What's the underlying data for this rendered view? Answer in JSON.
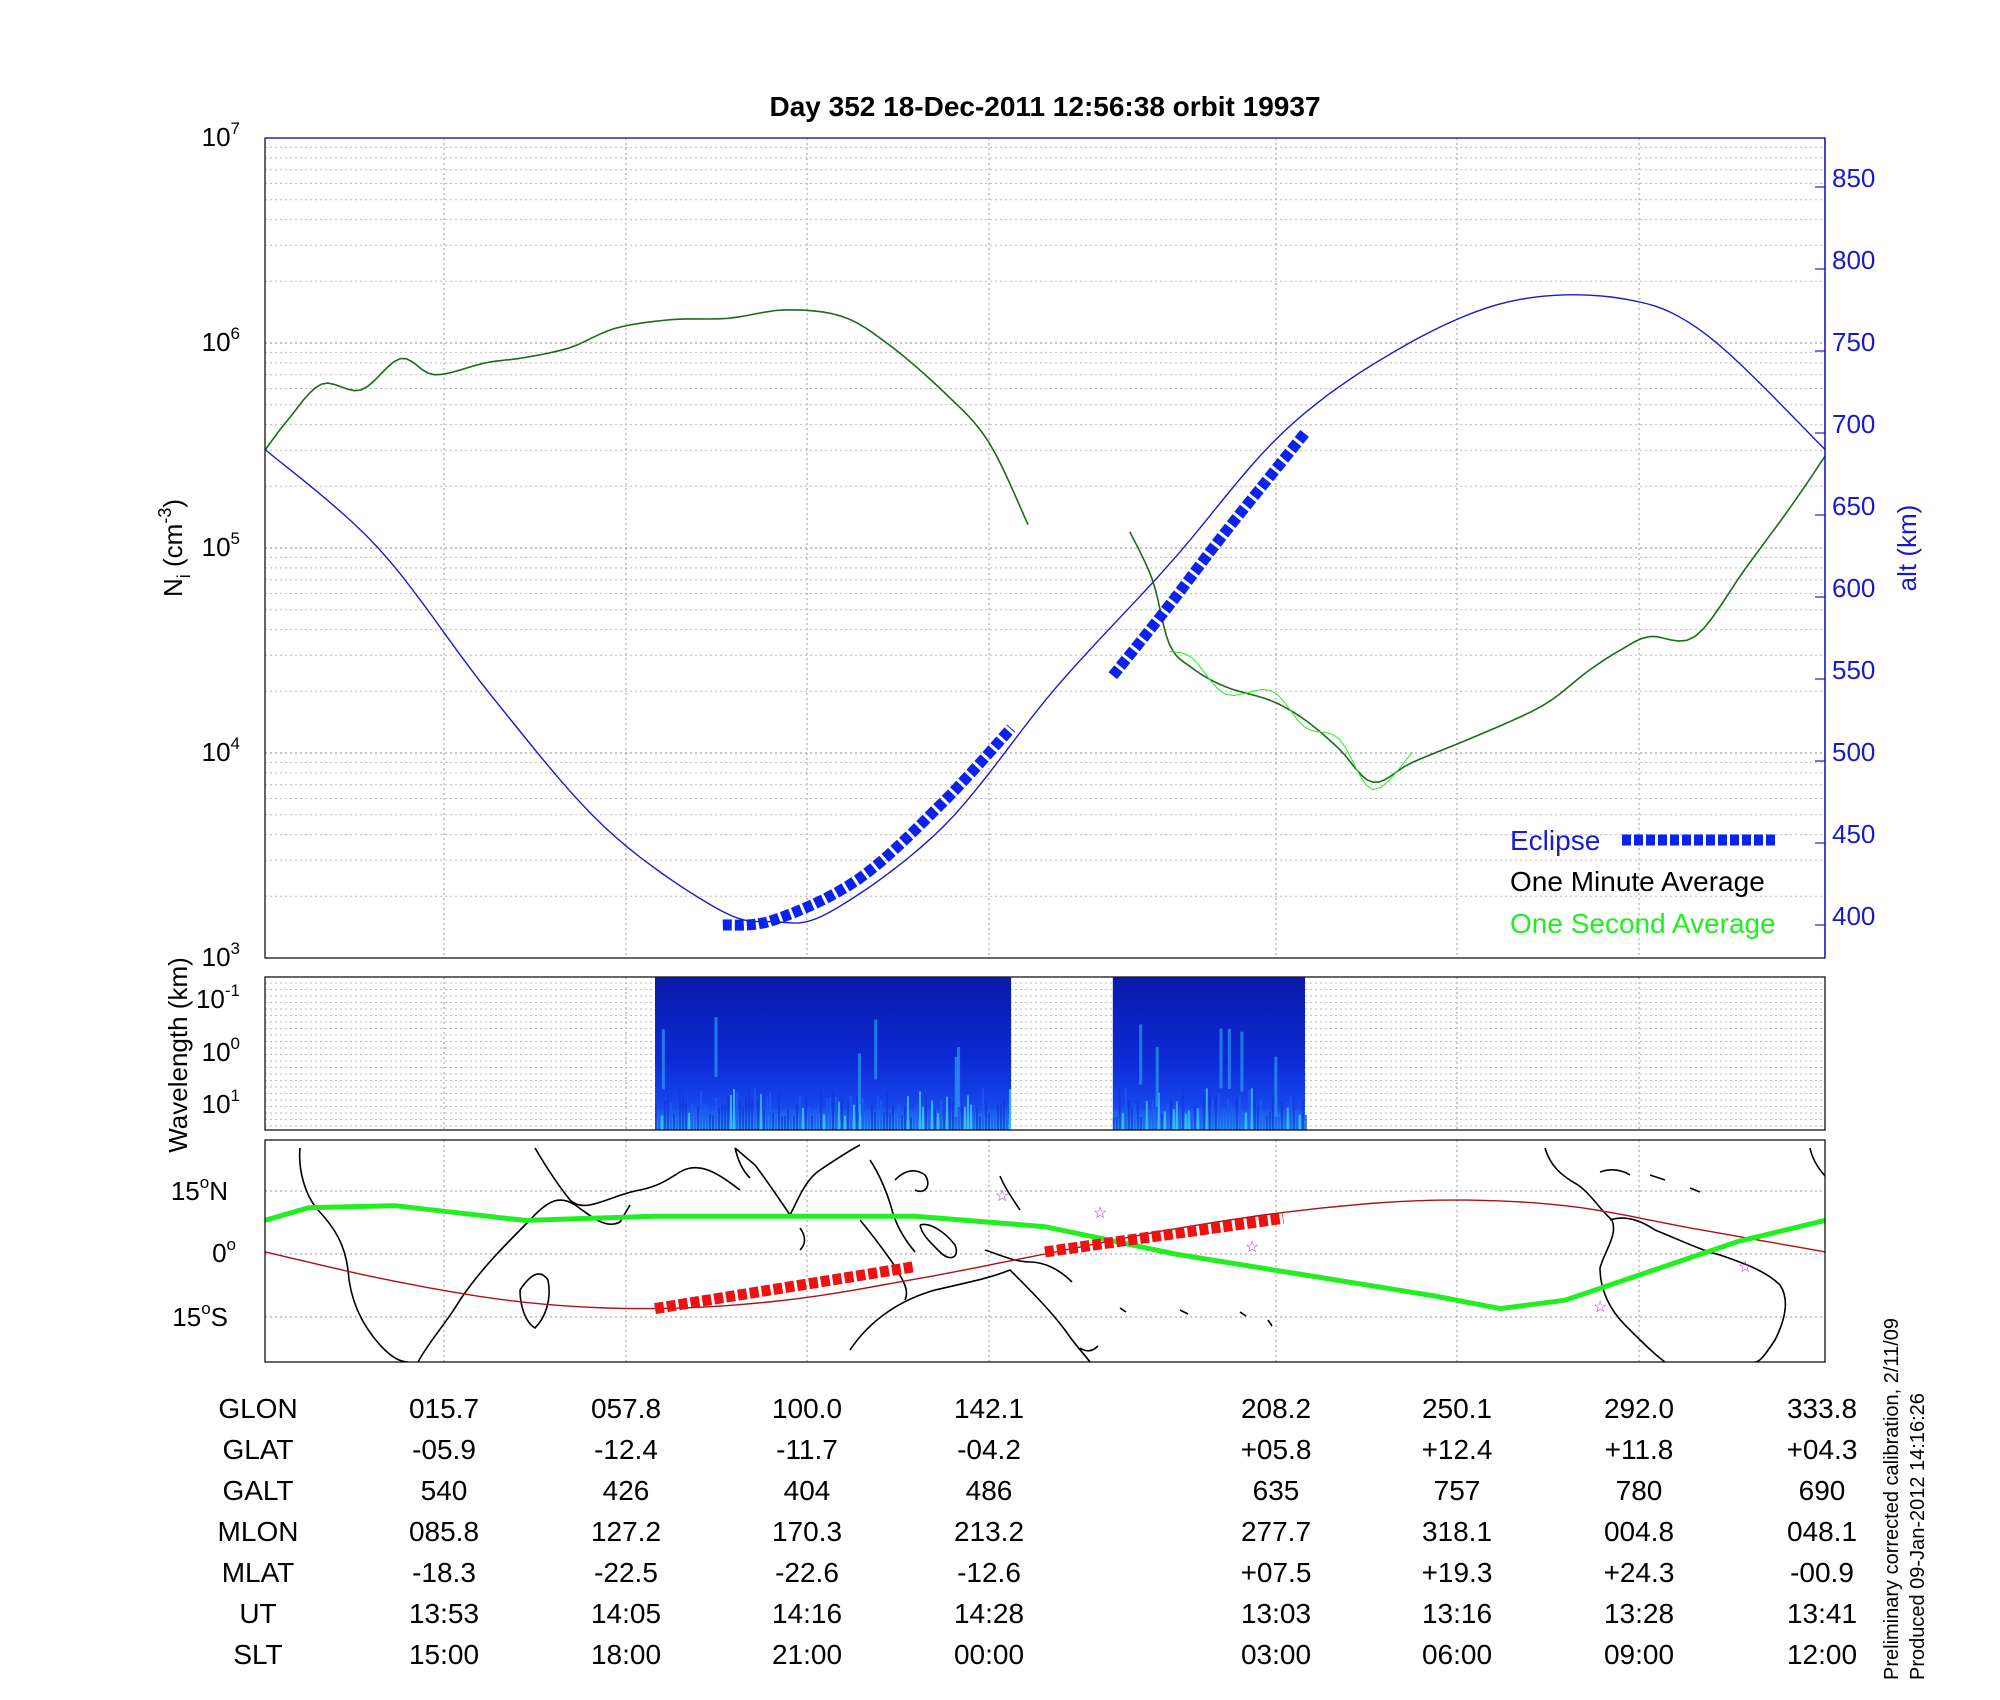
{
  "title": "Day 352  18-Dec-2011 12:56:38   orbit 19937",
  "colors": {
    "green_dark": "#1a6b1a",
    "green_bright": "#22ee22",
    "blue": "#1a1acc",
    "eclipse": "#0b22ee",
    "red": "#b01010",
    "eclipse_red": "#ee1111"
  },
  "panel_top": {
    "ylabel_left": "N",
    "ylabel_left_sub": "i",
    "ylabel_left_unit": "(cm",
    "ylabel_left_exp": "-3",
    "ylabel_left_close": ")",
    "ylabel_right": "alt (km)",
    "yticks_left": [
      {
        "base": "10",
        "exp": "7"
      },
      {
        "base": "10",
        "exp": "6"
      },
      {
        "base": "10",
        "exp": "5"
      },
      {
        "base": "10",
        "exp": "4"
      },
      {
        "base": "10",
        "exp": "3"
      }
    ],
    "yticks_right": [
      "850",
      "800",
      "750",
      "700",
      "650",
      "600",
      "550",
      "500",
      "450",
      "400"
    ],
    "legend": {
      "eclipse": "Eclipse",
      "minute": "One Minute Average",
      "second": "One Second Average"
    }
  },
  "panel_mid": {
    "ylabel": "Wavelength (km)",
    "yticks": [
      {
        "base": "10",
        "exp": "-1"
      },
      {
        "base": "10",
        "exp": "0"
      },
      {
        "base": "10",
        "exp": "1"
      }
    ]
  },
  "panel_map": {
    "yticks": [
      {
        "text": "15",
        "deg": "o",
        "hem": "N"
      },
      {
        "text": "0",
        "deg": "o",
        "hem": ""
      },
      {
        "text": "15",
        "deg": "o",
        "hem": "S"
      }
    ]
  },
  "table": {
    "rows": [
      {
        "label": "GLON",
        "values": [
          "015.7",
          "057.8",
          "100.0",
          "142.1",
          "208.2",
          "250.1",
          "292.0",
          "333.8"
        ]
      },
      {
        "label": "GLAT",
        "values": [
          "-05.9",
          "-12.4",
          "-11.7",
          "-04.2",
          "+05.8",
          "+12.4",
          "+11.8",
          "+04.3"
        ]
      },
      {
        "label": "GALT",
        "values": [
          "540",
          "426",
          "404",
          "486",
          "635",
          "757",
          "780",
          "690"
        ]
      },
      {
        "label": "MLON",
        "values": [
          "085.8",
          "127.2",
          "170.3",
          "213.2",
          "277.7",
          "318.1",
          "004.8",
          "048.1"
        ]
      },
      {
        "label": "MLAT",
        "values": [
          "-18.3",
          "-22.5",
          "-22.6",
          "-12.6",
          "+07.5",
          "+19.3",
          "+24.3",
          "-00.9"
        ]
      },
      {
        "label": "UT",
        "values": [
          "13:53",
          "14:05",
          "14:16",
          "14:28",
          "13:03",
          "13:16",
          "13:28",
          "13:41"
        ]
      },
      {
        "label": "SLT",
        "values": [
          "15:00",
          "18:00",
          "21:00",
          "00:00",
          "03:00",
          "06:00",
          "09:00",
          "12:00"
        ]
      }
    ]
  },
  "side_note": {
    "line1": "Preliminary corrected calibration, 2/11/09",
    "line2": "Produced 09-Jan-2012 14:16:26"
  },
  "chart_data": [
    {
      "type": "line",
      "title": "Day 352  18-Dec-2011 12:56:38   orbit 19937",
      "x_label": "SLT",
      "x_ticks": [
        "15:00",
        "18:00",
        "21:00",
        "00:00",
        "03:00",
        "06:00",
        "09:00",
        "12:00"
      ],
      "y_scale": "log",
      "ylim": [
        1000,
        10000000
      ],
      "y2lim": [
        375,
        875
      ],
      "grid": true,
      "legend_position": "bottom-right",
      "series": [
        {
          "name": "One Minute Average",
          "axis": "left",
          "segment1": {
            "x_slt": [
              12.0,
              12.4,
              13.0,
              13.7,
              14.4,
              15.0,
              15.9,
              16.6,
              17.4,
              18.2,
              19.2,
              20.2,
              21.2,
              22.2,
              23.0,
              24.0,
              24.8,
              25.5
            ],
            "y": [
              300000,
              420000,
              630000,
              590000,
              840000,
              700000,
              800000,
              850000,
              950000,
              1180000,
              1300000,
              1320000,
              1450000,
              1350000,
              1000000,
              580000,
              330000,
              130000
            ]
          },
          "segment2": {
            "x_slt": [
              27.3,
              27.7,
              28.0,
              28.4,
              29.0,
              29.8,
              30.4,
              31.0,
              31.6,
              32.3,
              33.4,
              34.6,
              35.4,
              36.0,
              36.5,
              37.3,
              38.2,
              39.0,
              39.6
            ],
            "y": [
              120000,
              70000,
              34000,
              26000,
              21000,
              18000,
              14500,
              10500,
              7200,
              9000,
              12000,
              17000,
              25000,
              32000,
              37000,
              37000,
              80000,
              160000,
              280000
            ]
          }
        },
        {
          "name": "Altitude",
          "axis": "right",
          "x_slt": [
            12.0,
            14.0,
            16.0,
            18.0,
            20.0,
            21.0,
            22.0,
            24.0,
            26.0,
            28.0,
            30.0,
            32.0,
            34.0,
            36.0,
            37.5,
            39.6
          ],
          "y": [
            690,
            630,
            540,
            460,
            410,
            402,
            408,
            460,
            545,
            620,
            700,
            750,
            780,
            782,
            760,
            690
          ]
        },
        {
          "name": "Eclipse",
          "axis": "right",
          "segment1": {
            "x_slt": [
              20.1,
              21.0,
              22.5,
              24.0,
              25.2
            ],
            "y": [
              400,
              403,
              428,
              475,
              520
            ]
          },
          "segment2": {
            "x_slt": [
              27.0,
              28.0,
              29.0,
              30.4
            ],
            "y": [
              552,
              595,
              640,
              700
            ]
          }
        }
      ]
    },
    {
      "type": "heatmap",
      "y_label": "Wavelength (km)",
      "y_ticks": [
        "10^-1",
        "10^0",
        "10^1"
      ],
      "segments_slt": [
        [
          18.9,
          25.2
        ],
        [
          27.0,
          30.4
        ]
      ]
    },
    {
      "type": "line",
      "y_ticks": [
        "15oN",
        "0o",
        "15oS"
      ],
      "ylim": [
        -22,
        20
      ],
      "series": [
        {
          "name": "Satellite track",
          "x_glon": [
            0,
            30,
            60,
            90,
            120,
            150,
            180,
            210,
            240,
            270,
            300,
            330,
            360
          ],
          "y_lat": [
            0.5,
            -6.5,
            -11.5,
            -13,
            -11,
            -6,
            0,
            6,
            10.5,
            12.8,
            11.5,
            6,
            0.5
          ]
        },
        {
          "name": "Magnetic equator",
          "x_glon": [
            0,
            10,
            30,
            60,
            90,
            120,
            150,
            180,
            210,
            240,
            270,
            285,
            300,
            320,
            340,
            360
          ],
          "y_lat": [
            8,
            11,
            11.5,
            8,
            9,
            9,
            9,
            6.5,
            0,
            -5,
            -10,
            -13,
            -11,
            -4,
            3,
            8
          ]
        },
        {
          "name": "Eclipse",
          "segment1": {
            "x_glon": [
              90,
              150
            ],
            "y_lat": [
              -13,
              -3
            ]
          },
          "segment2": {
            "x_glon": [
              180,
              235
            ],
            "y_lat": [
              0.5,
              8.5
            ]
          }
        }
      ]
    }
  ]
}
